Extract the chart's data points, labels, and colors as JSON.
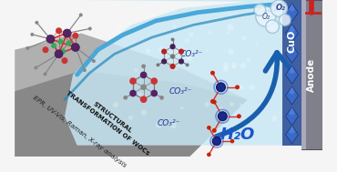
{
  "background_color": "#f5f5f5",
  "water_color_light": "#c8e8f5",
  "water_color_mid": "#a0d0ea",
  "water_edge_color": "#4aa8d8",
  "water_edge_color2": "#2288bb",
  "anode_color": "#80808a",
  "anode_label": "Anode",
  "cuo_label": "CuO",
  "h2o_label": "H₂O",
  "o2_label": "O₂",
  "co3_label": "CO₃²⁻",
  "arrow_color": "#1a5fad",
  "diamond_color": "#3a6ac8",
  "diamond_color2": "#2255aa",
  "epr_text": "EPR, UV-Vis, Raman, X-ray analysis",
  "struct_text": "STRUCTURAL\nTRANSFORMATION OF WOCs",
  "gray_band_color1": "#b0b0b0",
  "gray_band_color2": "#787878",
  "figsize": [
    3.7,
    1.89
  ],
  "dpi": 100
}
